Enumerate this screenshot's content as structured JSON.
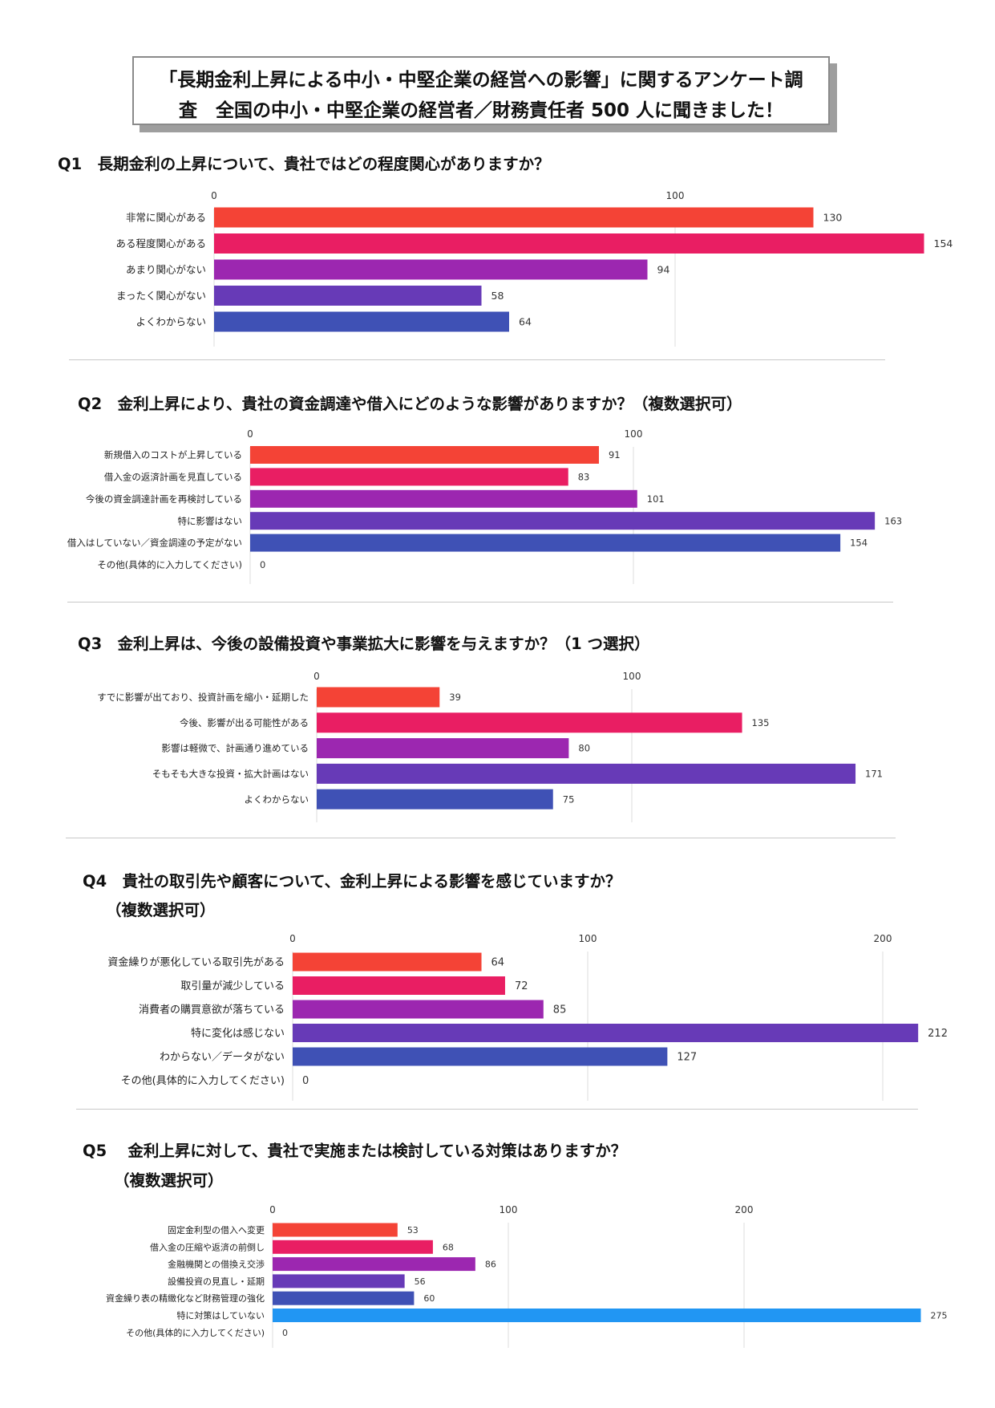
{
  "header": {
    "line1": "「長期金利上昇による中小・中堅企業の経営への影響」に関するアンケート調",
    "line2": "査　全国の中小・中堅企業の経営者／財務責任者 500 人に聞きました！"
  },
  "questions": [
    {
      "title": "Q1　長期金利の上昇について、貴社ではどの程度関心がありますか？",
      "subtitle": ""
    },
    {
      "title": "Q2　金利上昇により、貴社の資金調達や借入にどのような影響がありますか？（複数選択可）",
      "subtitle": ""
    },
    {
      "title": "Q3　金利上昇は、今後の設備投資や事業拡大に影響を与えますか？（1 つ選択）",
      "subtitle": ""
    },
    {
      "title": "Q4　貴社の取引先や顧客について、金利上昇による影響を感じていますか？",
      "subtitle": "（複数選択可）"
    },
    {
      "title": "Q5　 金利上昇に対して、貴社で実施または検討している対策はありますか？",
      "subtitle": "（複数選択可）"
    }
  ],
  "chart_data": [
    {
      "type": "bar",
      "orientation": "horizontal",
      "categories": [
        "非常に関心がある",
        "ある程度関心がある",
        "あまり関心がない",
        "まったく関心がない",
        "よくわからない"
      ],
      "values": [
        130,
        154,
        94,
        58,
        64
      ],
      "colors": [
        "#f44336",
        "#e91e63",
        "#9c27b0",
        "#673ab7",
        "#3f51b5"
      ],
      "ticks": [
        0,
        100
      ],
      "xlim": [
        0,
        160
      ]
    },
    {
      "type": "bar",
      "orientation": "horizontal",
      "categories": [
        "新規借入のコストが上昇している",
        "借入金の返済計画を見直している",
        "今後の資金調達計画を再検討している",
        "特に影響はない",
        "借入はしていない／資金調達の予定がない",
        "その他(具体的に入力してください)"
      ],
      "values": [
        91,
        83,
        101,
        163,
        154,
        0
      ],
      "colors": [
        "#f44336",
        "#e91e63",
        "#9c27b0",
        "#673ab7",
        "#3f51b5",
        "#2196f3"
      ],
      "ticks": [
        0,
        100
      ],
      "xlim": [
        0,
        170
      ]
    },
    {
      "type": "bar",
      "orientation": "horizontal",
      "categories": [
        "すでに影響が出ており、投資計画を縮小・延期した",
        "今後、影響が出る可能性がある",
        "影響は軽微で、計画通り進めている",
        "そもそも大きな投資・拡大計画はない",
        "よくわからない"
      ],
      "values": [
        39,
        135,
        80,
        171,
        75
      ],
      "colors": [
        "#f44336",
        "#e91e63",
        "#9c27b0",
        "#673ab7",
        "#3f51b5"
      ],
      "ticks": [
        0,
        100
      ],
      "xlim": [
        0,
        175
      ]
    },
    {
      "type": "bar",
      "orientation": "horizontal",
      "categories": [
        "資金繰りが悪化している取引先がある",
        "取引量が減少している",
        "消費者の購買意欲が落ちている",
        "特に変化は感じない",
        "わからない／データがない",
        "その他(具体的に入力してください)"
      ],
      "values": [
        64,
        72,
        85,
        212,
        127,
        0
      ],
      "colors": [
        "#f44336",
        "#e91e63",
        "#9c27b0",
        "#673ab7",
        "#3f51b5",
        "#2196f3"
      ],
      "ticks": [
        0,
        100,
        200
      ],
      "xlim": [
        0,
        215
      ]
    },
    {
      "type": "bar",
      "orientation": "horizontal",
      "categories": [
        "固定金利型の借入へ変更",
        "借入金の圧縮や返済の前倒し",
        "金融機関との借換え交渉",
        "設備投資の見直し・延期",
        "資金繰り表の精緻化など財務管理の強化",
        "特に対策はしていない",
        "その他(具体的に入力してください)"
      ],
      "values": [
        53,
        68,
        86,
        56,
        60,
        275,
        0
      ],
      "colors": [
        "#f44336",
        "#e91e63",
        "#9c27b0",
        "#673ab7",
        "#3f51b5",
        "#2196f3",
        "#03a9f4"
      ],
      "ticks": [
        0,
        100,
        200
      ],
      "xlim": [
        0,
        275
      ]
    }
  ]
}
